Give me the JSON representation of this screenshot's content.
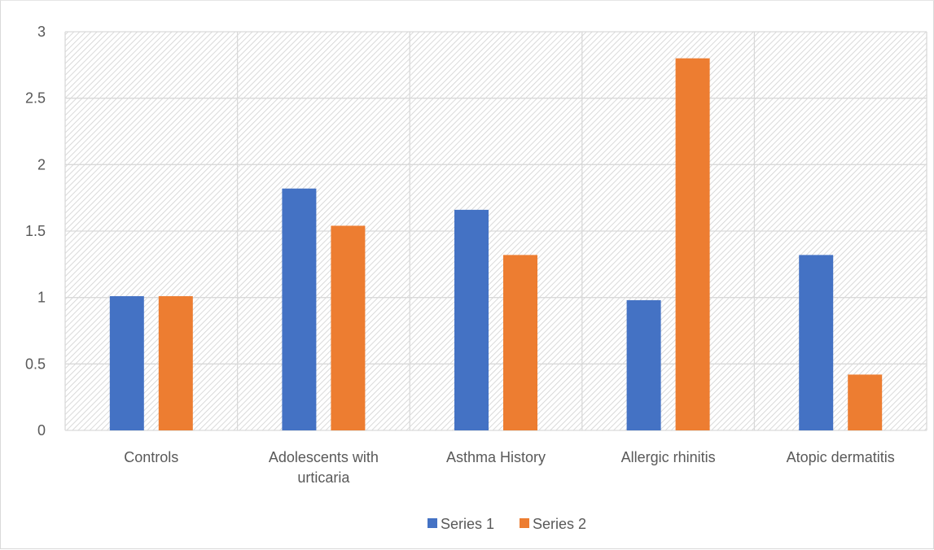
{
  "chart_data": {
    "type": "bar",
    "title": "",
    "xlabel": "",
    "ylabel": "",
    "ylim": [
      0,
      3
    ],
    "yticks": [
      "0",
      "0.5",
      "1",
      "1.5",
      "2",
      "2.5",
      "3"
    ],
    "grid": true,
    "legend_position": "bottom",
    "categories": [
      [
        "Controls"
      ],
      [
        "Adolescents with",
        "urticaria"
      ],
      [
        "Asthma History"
      ],
      [
        "Allergic rhinitis"
      ],
      [
        "Atopic dermatitis"
      ]
    ],
    "series": [
      {
        "name": "Series 1",
        "color": "#4472C4",
        "values": [
          1.01,
          1.82,
          1.66,
          0.98,
          1.32
        ]
      },
      {
        "name": "Series 2",
        "color": "#ED7D31",
        "values": [
          1.01,
          1.54,
          1.32,
          2.8,
          0.42
        ]
      }
    ]
  }
}
